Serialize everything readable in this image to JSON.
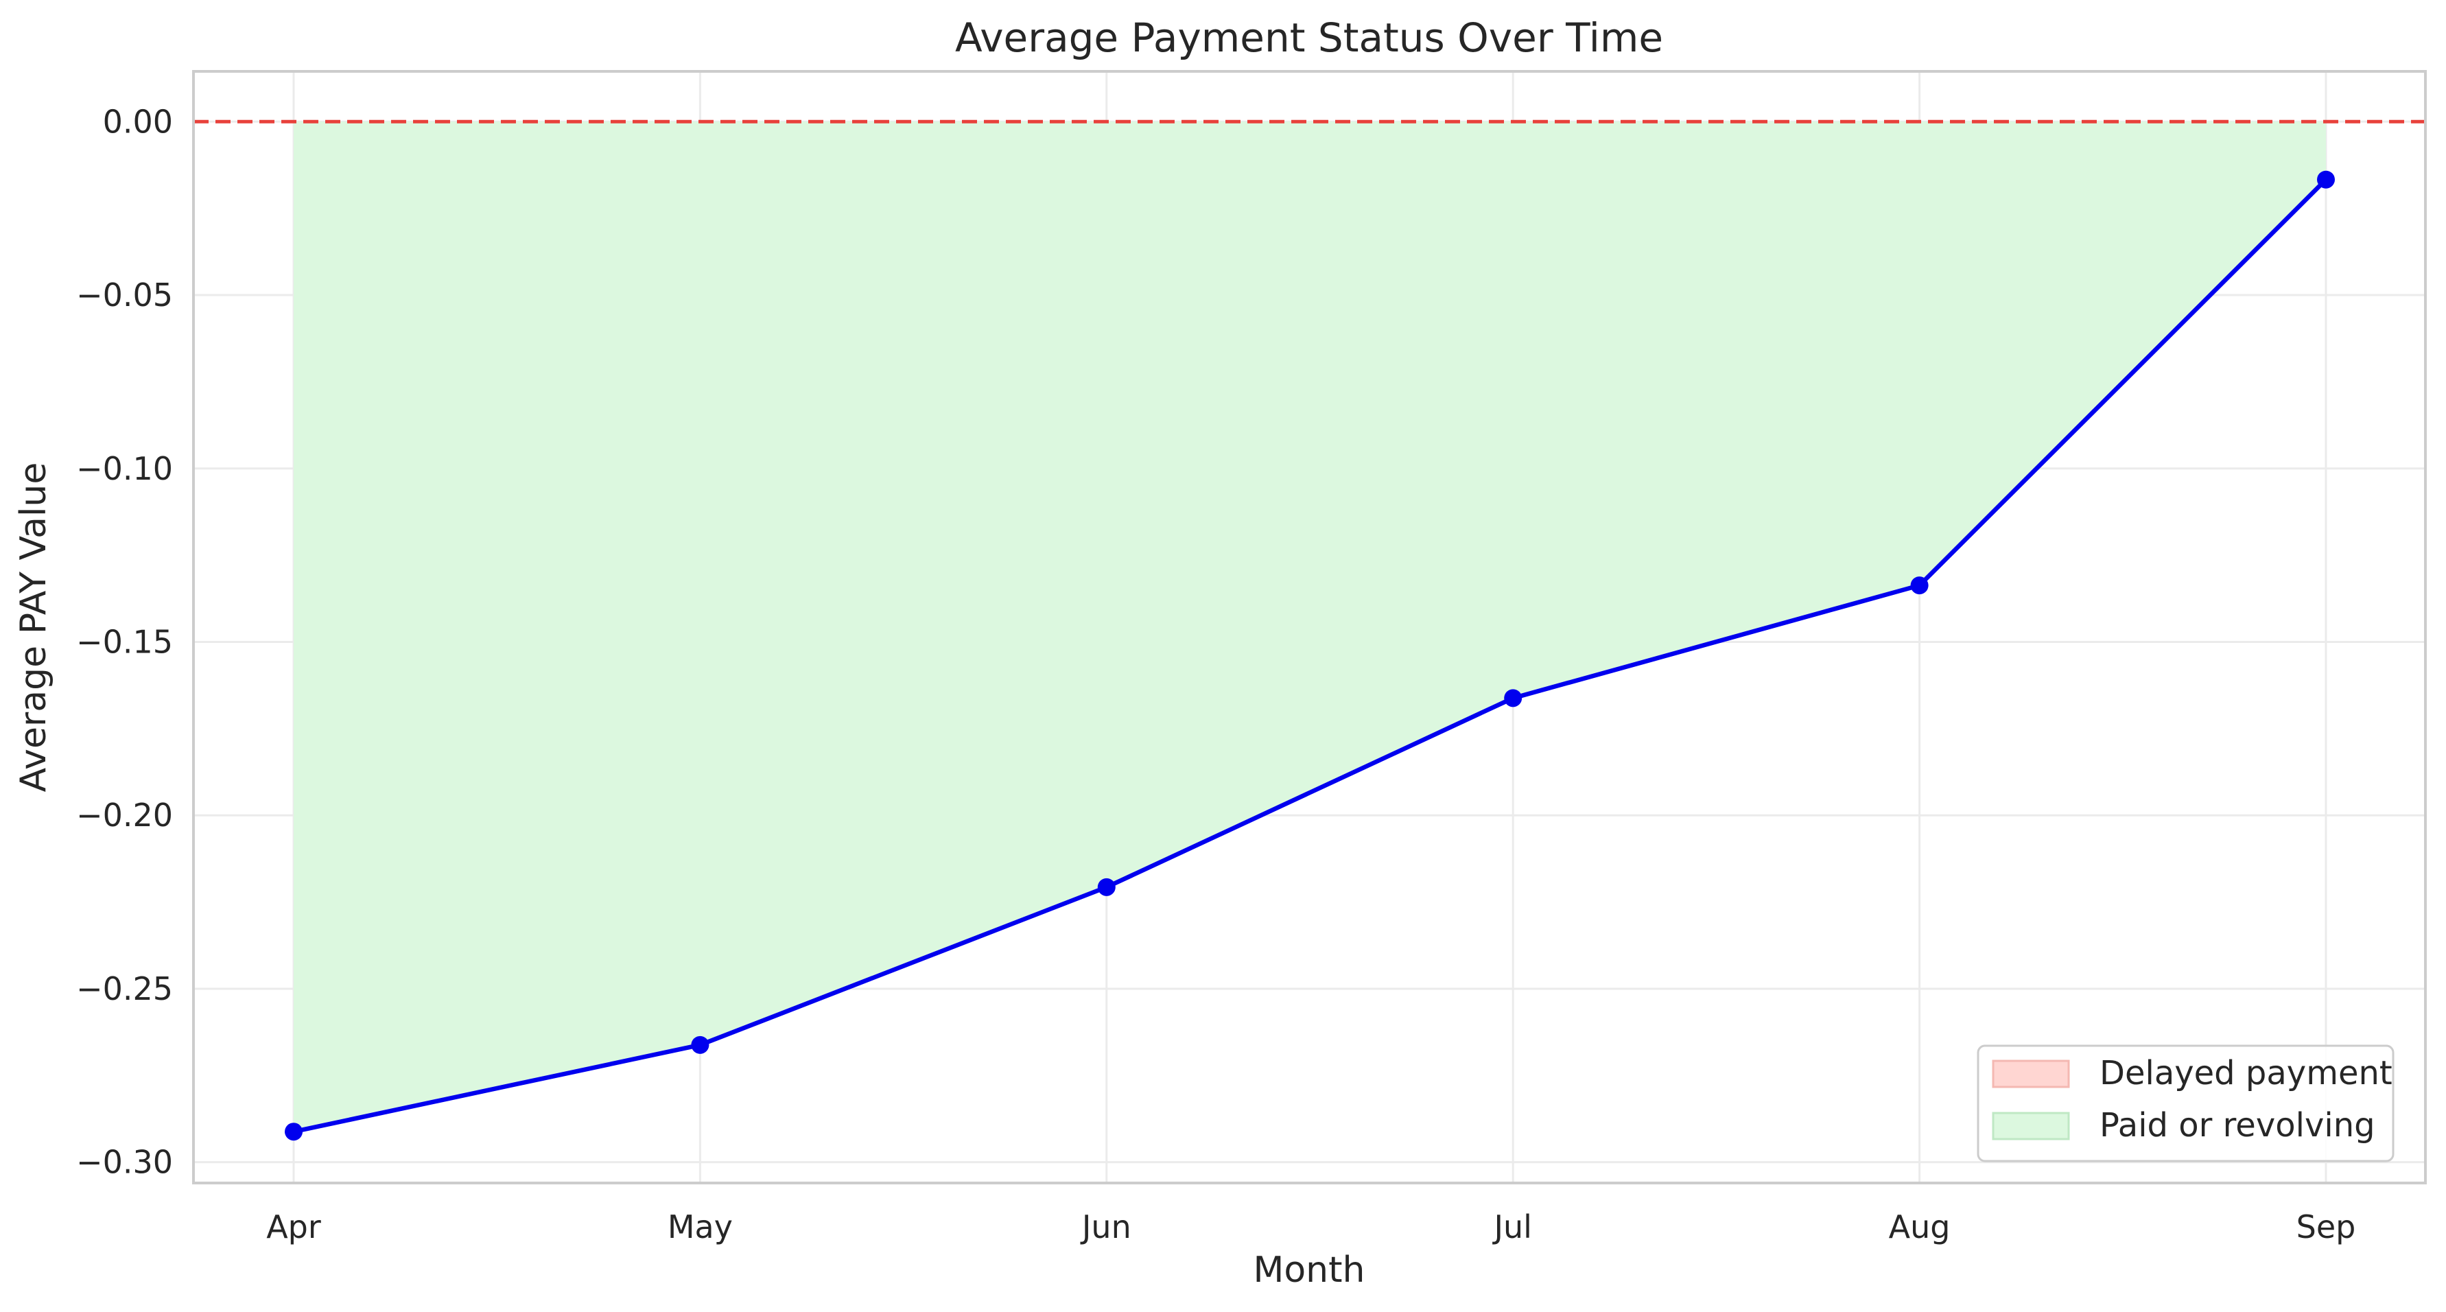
{
  "chart_data": {
    "type": "line",
    "title": "Average Payment Status Over Time",
    "xlabel": "Month",
    "ylabel": "Average PAY Value",
    "categories": [
      "Apr",
      "May",
      "Jun",
      "Jul",
      "Aug",
      "Sep"
    ],
    "series": [
      {
        "values": [
          -0.2912,
          -0.2662,
          -0.2207,
          -0.1662,
          -0.1337,
          -0.0167
        ],
        "color": "#0000ee",
        "marker": "circle"
      }
    ],
    "reference_line": {
      "y": 0.0,
      "style": "dashed",
      "color": "#e8413b"
    },
    "fill_between": {
      "from": 0.0,
      "positive_color": "#ffd6d2",
      "negative_color": "#dcf8df"
    },
    "ylim": [
      -0.306,
      0.0145
    ],
    "yticks": [
      0.0,
      -0.05,
      -0.1,
      -0.15,
      -0.2,
      -0.25,
      -0.3
    ],
    "ytick_labels": [
      "0.00",
      "−0.05",
      "−0.10",
      "−0.15",
      "−0.20",
      "−0.25",
      "−0.30"
    ],
    "grid": true,
    "legend": {
      "placement": "lower-right",
      "entries": [
        {
          "label": "Delayed payment",
          "color": "#ffd6d2"
        },
        {
          "label": "Paid or revolving",
          "color": "#dcf8df"
        }
      ]
    }
  }
}
